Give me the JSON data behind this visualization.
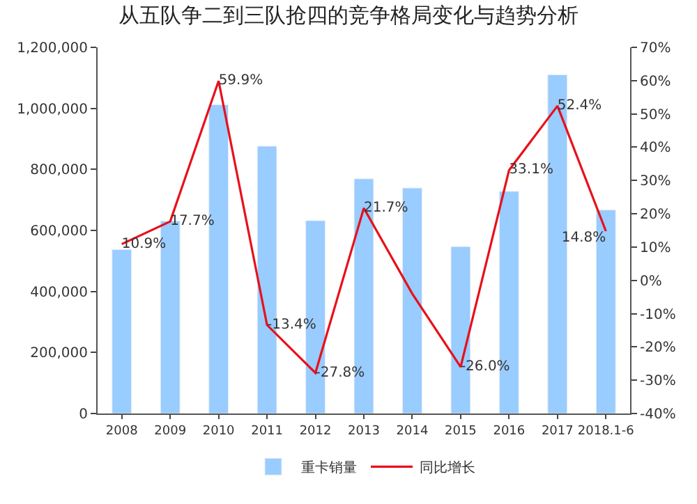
{
  "chart_data": {
    "type": "bar",
    "title": "从五队争二到三队抢四的竞争格局变化与趋势分析",
    "categories": [
      "2008",
      "2009",
      "2010",
      "2011",
      "2012",
      "2013",
      "2014",
      "2015",
      "2016",
      "2017",
      "2018.1-6"
    ],
    "series": [
      {
        "name": "重卡销量",
        "color": "#99ccff",
        "values": [
          537000,
          631000,
          1012000,
          876000,
          632000,
          769000,
          739000,
          547000,
          728000,
          1110000,
          667000
        ]
      },
      {
        "name": "同比增长",
        "type": "line",
        "axis": "y2",
        "color": "#e8101a",
        "marker": "none",
        "line_style": "solid",
        "values": [
          10.9,
          17.7,
          59.9,
          -13.4,
          -27.8,
          21.7,
          -4.0,
          -26.0,
          33.1,
          52.4,
          14.8
        ],
        "value_labels": [
          "10.9%",
          "17.7%",
          "59.9%",
          "-13.4%",
          "-27.8%",
          "21.7%",
          null,
          "-26.0%",
          "33.1%",
          "52.4%",
          "14.8%"
        ]
      }
    ],
    "ylim": [
      0,
      1200000
    ],
    "yticks": [
      {
        "value": 0,
        "label": "0"
      },
      {
        "value": 200000,
        "label": "200,000"
      },
      {
        "value": 400000,
        "label": "400,000"
      },
      {
        "value": 600000,
        "label": "600,000"
      },
      {
        "value": 800000,
        "label": "800,000"
      },
      {
        "value": 1000000,
        "label": "1,000,000"
      },
      {
        "value": 1200000,
        "label": "1,200,000"
      }
    ],
    "y2lim": [
      -40,
      70
    ],
    "y2ticks": [
      {
        "value": -40,
        "label": "-40%"
      },
      {
        "value": -30,
        "label": "-30%"
      },
      {
        "value": -20,
        "label": "-20%"
      },
      {
        "value": -10,
        "label": "-10%"
      },
      {
        "value": 0,
        "label": "0%"
      },
      {
        "value": 10,
        "label": "10%"
      },
      {
        "value": 20,
        "label": "20%"
      },
      {
        "value": 30,
        "label": "30%"
      },
      {
        "value": 40,
        "label": "40%"
      },
      {
        "value": 50,
        "label": "50%"
      },
      {
        "value": 60,
        "label": "60%"
      },
      {
        "value": 70,
        "label": "70%"
      }
    ],
    "legend": "bottom"
  }
}
